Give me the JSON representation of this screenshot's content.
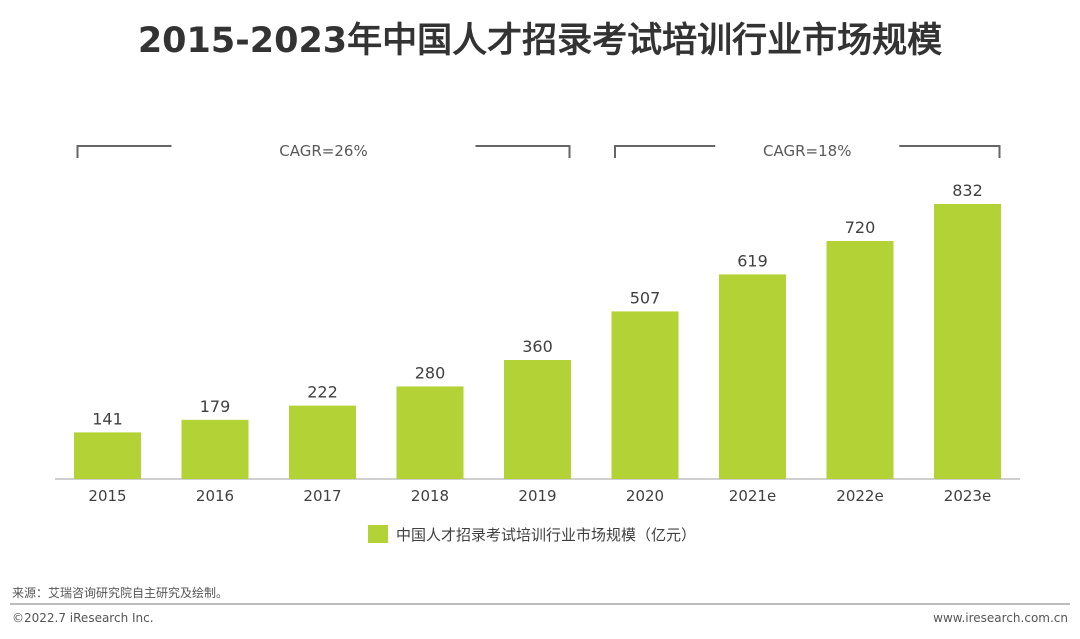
{
  "chart_data": {
    "type": "bar",
    "title": "2015-2023年中国人才招录考试培训行业市场规模",
    "categories": [
      "2015",
      "2016",
      "2017",
      "2018",
      "2019",
      "2020",
      "2021e",
      "2022e",
      "2023e"
    ],
    "series": [
      {
        "name": "中国人才招录考试培训行业市场规模（亿元）",
        "values": [
          141,
          179,
          222,
          280,
          360,
          507,
          619,
          720,
          832
        ],
        "color": "#b2d235"
      }
    ],
    "ylim": [
      0,
      900
    ],
    "grid": false,
    "legend": "bottom",
    "annotations": [
      {
        "text": "CAGR=26%",
        "from": "2015",
        "to": "2019"
      },
      {
        "text": "CAGR=18%",
        "from": "2020",
        "to": "2023e"
      }
    ]
  },
  "footer": {
    "source": "来源：艾瑞咨询研究院自主研究及绘制。",
    "copyright": "©2022.7 iResearch Inc.",
    "url": "www.iresearch.com.cn"
  }
}
